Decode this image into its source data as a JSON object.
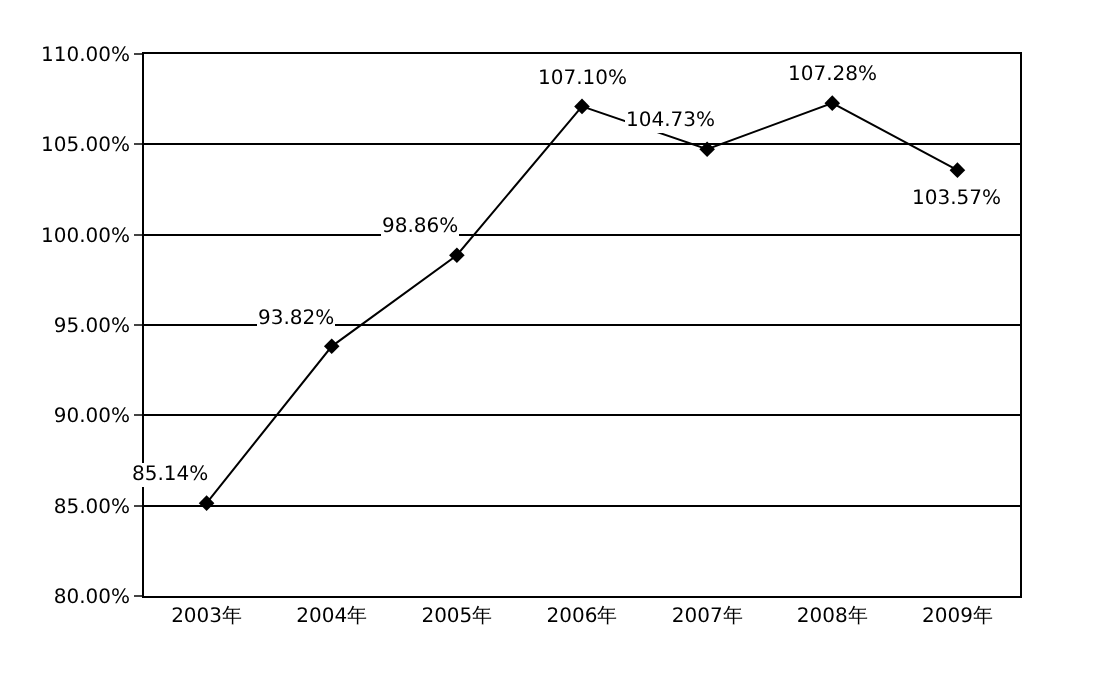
{
  "chart_data": {
    "type": "line",
    "categories": [
      "2003年",
      "2004年",
      "2005年",
      "2006年",
      "2007年",
      "2008年",
      "2009年"
    ],
    "series": [
      {
        "color": "#000000",
        "values": [
          85.14,
          93.82,
          98.86,
          107.1,
          104.73,
          107.28,
          103.57
        ],
        "value_labels": [
          "85.14%",
          "93.82%",
          "98.86%",
          "107.10%",
          "104.73%",
          "107.28%",
          "103.57%"
        ]
      }
    ],
    "ylim": [
      80,
      110
    ],
    "yticks": [
      {
        "value": 80,
        "label": "80.00%"
      },
      {
        "value": 85,
        "label": "85.00%"
      },
      {
        "value": 90,
        "label": "90.00%"
      },
      {
        "value": 95,
        "label": "95.00%"
      },
      {
        "value": 100,
        "label": "100.00%"
      },
      {
        "value": 105,
        "label": "105.00%"
      },
      {
        "value": 110,
        "label": "110.00%"
      }
    ],
    "grid": "y",
    "marker": "diamond",
    "line_style": "solid"
  }
}
